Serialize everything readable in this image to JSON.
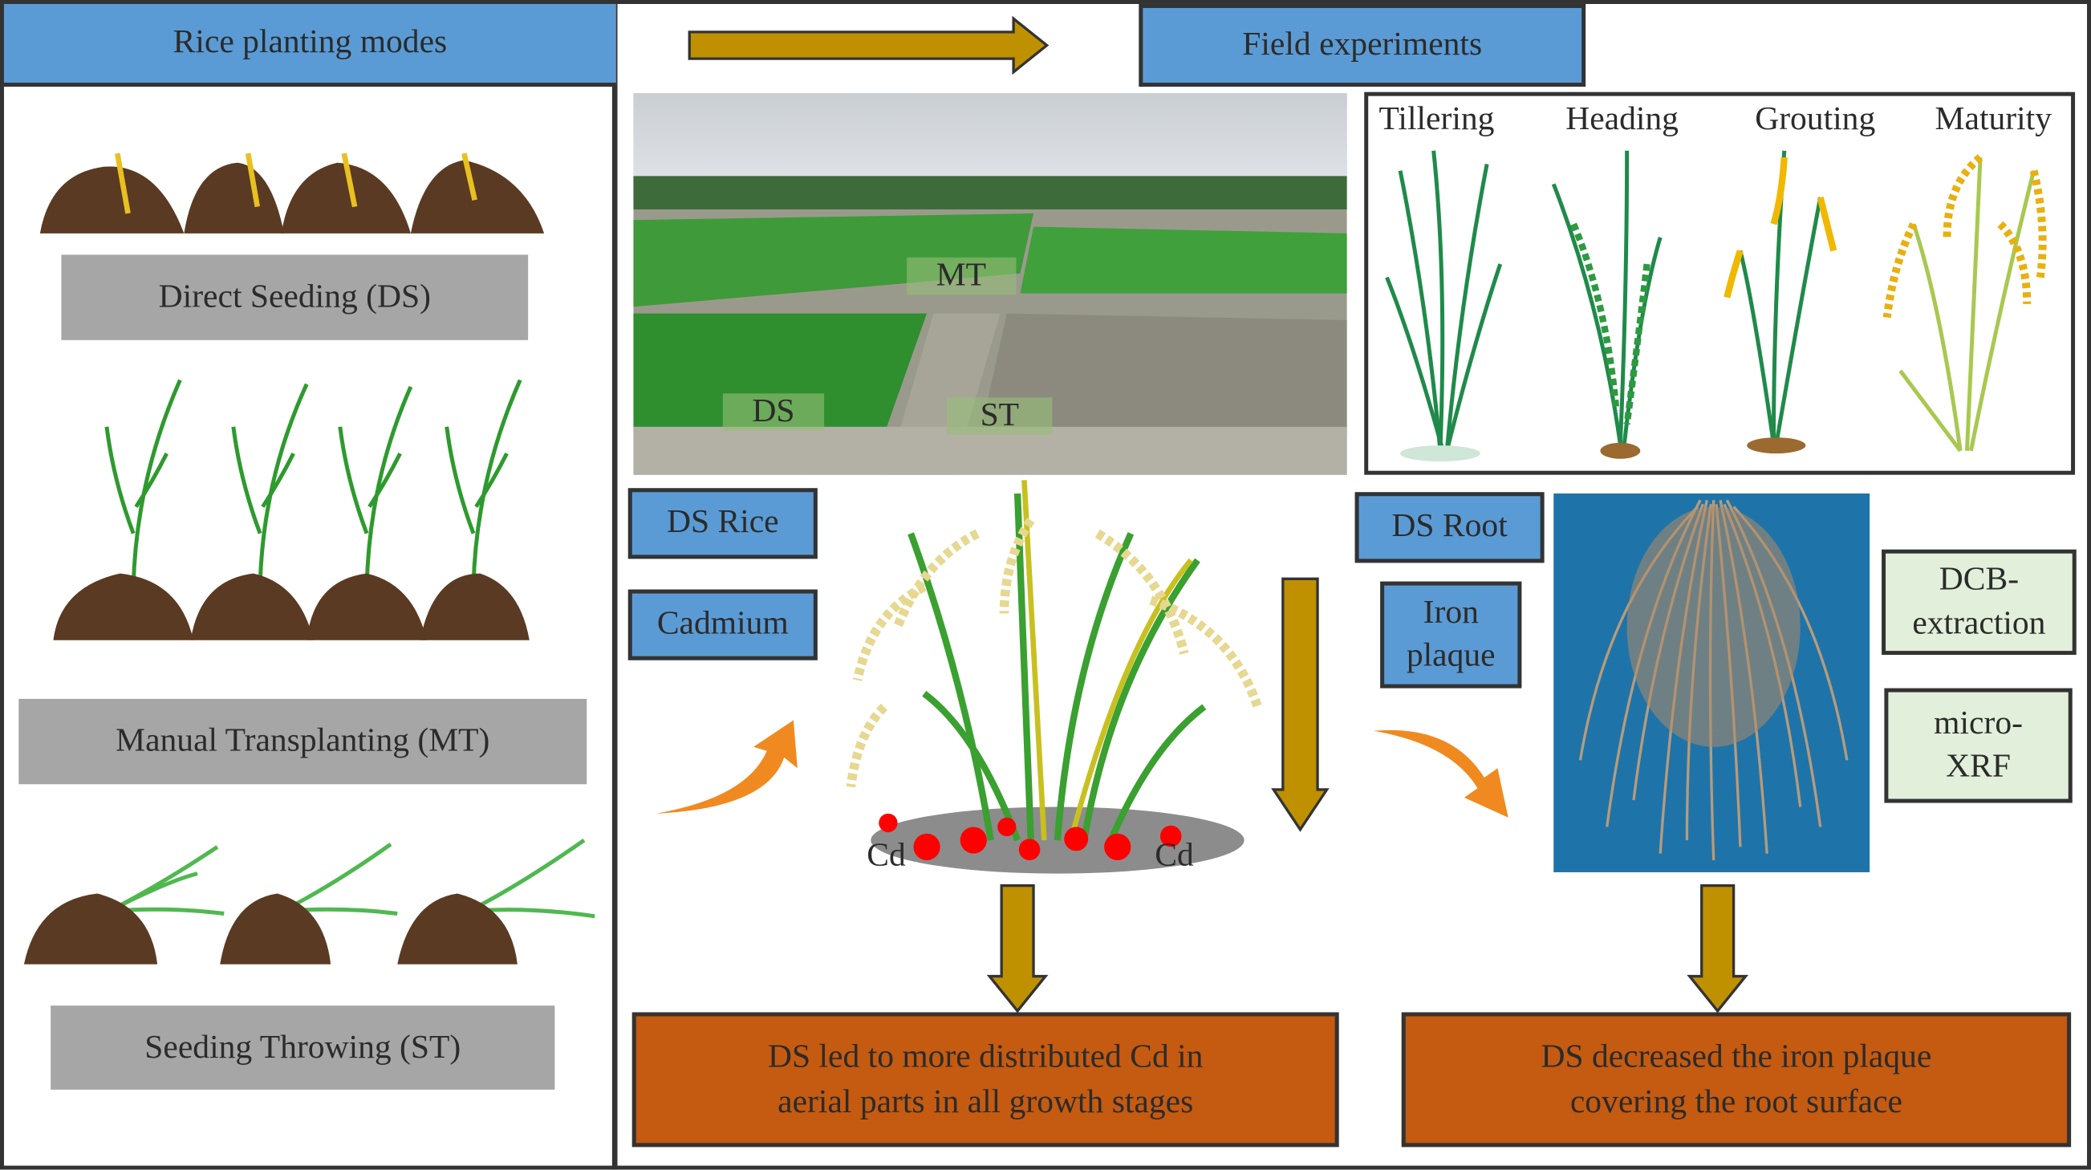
{
  "left_panel": {
    "header": "Rice planting modes",
    "modes": [
      {
        "label": "Direct Seeding (DS)"
      },
      {
        "label": "Manual Transplanting (MT)"
      },
      {
        "label": "Seeding Throwing (ST)"
      }
    ]
  },
  "right_panel": {
    "header": "Field experiments",
    "photo_labels": {
      "ds": "DS",
      "mt": "MT",
      "st": "ST"
    },
    "growth_stages": [
      "Tillering",
      "Heading",
      "Grouting",
      "Maturity"
    ],
    "rice_tags": [
      "DS Rice",
      "Cadmium"
    ],
    "cd_labels": [
      "Cd",
      "Cd"
    ],
    "root_tags": [
      "DS Root",
      "Iron plaque"
    ],
    "methods": [
      "DCB-extraction",
      "micro-XRF"
    ],
    "conclusions": [
      "DS led to more distributed Cd in aerial parts in all growth stages",
      "DS decreased the iron plaque covering the root surface"
    ]
  },
  "colors": {
    "header_blue": "#5b9bd5",
    "arrow_gold": "#bf9000",
    "conclusion_orange": "#c55a11",
    "mode_grey": "#a6a6a6",
    "method_green": "#e2efda",
    "cd_red": "#ff0000"
  }
}
